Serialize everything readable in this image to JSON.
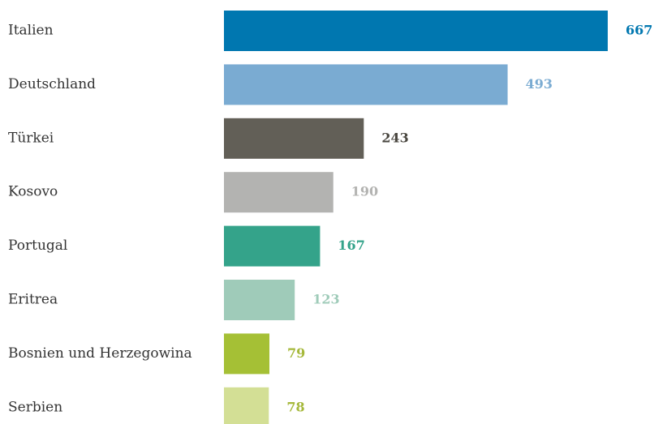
{
  "chart_data": {
    "type": "hbar",
    "categories": [
      "Italien",
      "Deutschland",
      "Türkei",
      "Kosovo",
      "Portugal",
      "Eritrea",
      "Bosnien und Herzegowina",
      "Serbien"
    ],
    "values": [
      667,
      493,
      243,
      190,
      167,
      123,
      79,
      78
    ],
    "colors": [
      "#0077b0",
      "#7aabd2",
      "#625f57",
      "#b3b3b1",
      "#34a38a",
      "#9fcbb9",
      "#a5c035",
      "#d3df95"
    ],
    "value_label_colors": [
      "#0077b0",
      "#7aabd2",
      "#4a4740",
      "#b3b3b1",
      "#34a38a",
      "#9fcbb9",
      "#a5b83a",
      "#a5b83a"
    ]
  }
}
